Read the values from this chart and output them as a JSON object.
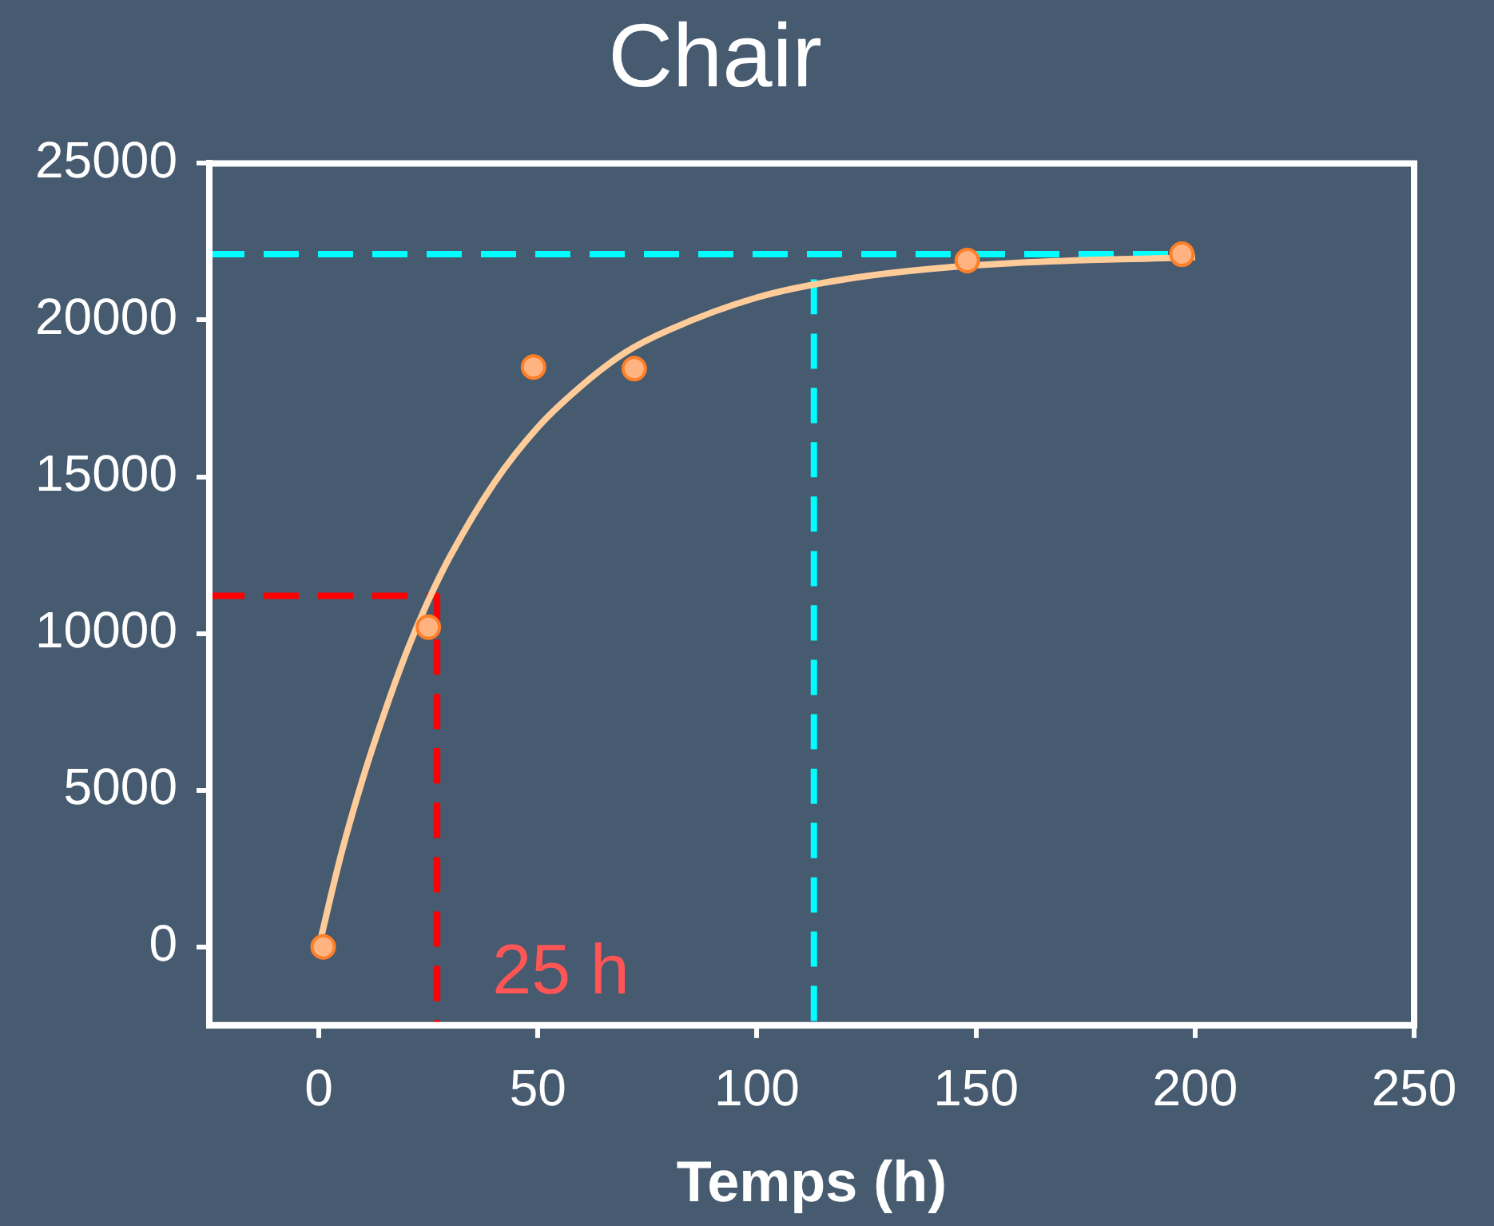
{
  "chart_data": {
    "type": "scatter",
    "title": "Chair",
    "xlabel": "Temps (h)",
    "xlim": [
      -25,
      250
    ],
    "xticks": [
      0,
      50,
      100,
      150,
      200,
      250
    ],
    "ylim": [
      -2500,
      25000
    ],
    "yticks": [
      0,
      5000,
      10000,
      15000,
      20000,
      25000
    ],
    "grid": false,
    "legend": false,
    "annotations": [
      "25 h"
    ],
    "series": [
      {
        "type": "line",
        "color": "#ffcc99",
        "line_style": "solid",
        "marker": "none",
        "x": [
          0,
          5,
          10,
          15,
          20,
          25,
          30,
          40,
          50,
          60,
          70,
          80,
          100,
          120,
          150,
          200
        ],
        "values": [
          0,
          2900,
          5350,
          7480,
          9400,
          11050,
          12470,
          14800,
          16580,
          17910,
          18970,
          19690,
          20720,
          21300,
          21750,
          22010
        ]
      },
      {
        "type": "line",
        "color": "#00ffff",
        "line_style": "dashed",
        "marker": "none",
        "x": [
          -25,
          197
        ],
        "values": [
          22100,
          22100
        ]
      },
      {
        "type": "line",
        "color": "#00ffff",
        "line_style": "dashed",
        "marker": "none",
        "x": [
          113,
          113
        ],
        "values": [
          21300,
          -2500
        ]
      },
      {
        "type": "line",
        "color": "#ff0000",
        "line_style": "dashed",
        "marker": "none",
        "x": [
          -25,
          27,
          27
        ],
        "values": [
          11200,
          11200,
          -2500
        ]
      },
      {
        "color": "#ffb380",
        "marker": "circle",
        "x": [
          1,
          25,
          49,
          72,
          148,
          197
        ],
        "values": [
          0,
          10200,
          18500,
          18450,
          21900,
          22100
        ]
      }
    ]
  }
}
